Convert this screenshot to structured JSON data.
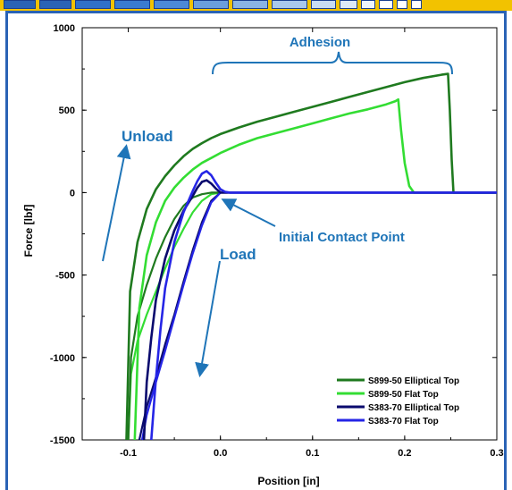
{
  "colors": {
    "frame": "#2a63b5",
    "topstrip": "#f2c200",
    "annotation": "#1f75b8",
    "series": [
      "#1f7a1f",
      "#33dd33",
      "#0a0a6e",
      "#2525e6"
    ]
  },
  "chart_data": {
    "type": "line",
    "title": "",
    "xlabel": "Position [in]",
    "ylabel": "Force [lbf]",
    "xlim": [
      -0.15,
      0.3
    ],
    "ylim": [
      -1500,
      1000
    ],
    "xticks": [
      -0.1,
      0.0,
      0.1,
      0.2,
      0.3
    ],
    "xtick_labels": [
      "-0.1",
      "0.0",
      "0.1",
      "0.2",
      "0.3"
    ],
    "yticks": [
      -1500,
      -1000,
      -500,
      0,
      500,
      1000
    ],
    "ytick_labels": [
      "-1500",
      "-1000",
      "-500",
      "0",
      "500",
      "1000"
    ],
    "grid": false,
    "legend_position": "bottom-right",
    "annotations": {
      "adhesion": "Adhesion",
      "unload": "Unload",
      "load": "Load",
      "contact": "Initial Contact Point"
    },
    "series": [
      {
        "name": "S899-50 Elliptical Top",
        "x": [
          -0.102,
          -0.098,
          -0.09,
          -0.08,
          -0.07,
          -0.06,
          -0.05,
          -0.04,
          -0.03,
          -0.02,
          -0.01,
          0.0,
          0.02,
          0.04,
          0.06,
          0.08,
          0.1,
          0.12,
          0.14,
          0.16,
          0.18,
          0.2,
          0.22,
          0.24,
          0.247,
          0.249,
          0.251,
          0.253,
          0.26,
          0.27,
          0.28,
          0.29,
          0.3
        ],
        "y": [
          -1500,
          -600,
          -300,
          -100,
          20,
          100,
          165,
          220,
          265,
          300,
          330,
          355,
          395,
          430,
          460,
          490,
          520,
          550,
          580,
          610,
          640,
          670,
          695,
          715,
          720,
          500,
          200,
          0,
          0,
          0,
          0,
          0,
          0
        ]
      },
      {
        "name": "S899-50 Flat Top",
        "x": [
          -0.093,
          -0.088,
          -0.08,
          -0.07,
          -0.06,
          -0.05,
          -0.04,
          -0.03,
          -0.02,
          -0.01,
          0.0,
          0.02,
          0.04,
          0.06,
          0.08,
          0.1,
          0.12,
          0.14,
          0.16,
          0.18,
          0.19,
          0.193,
          0.196,
          0.2,
          0.205,
          0.21,
          0.22,
          0.24,
          0.26,
          0.28,
          0.3
        ],
        "y": [
          -1500,
          -700,
          -380,
          -180,
          -50,
          30,
          90,
          140,
          180,
          210,
          240,
          290,
          330,
          360,
          390,
          420,
          450,
          480,
          505,
          535,
          555,
          565,
          380,
          180,
          40,
          0,
          0,
          0,
          0,
          0,
          0
        ]
      },
      {
        "name": "S383-70 Elliptical Top",
        "x": [
          -0.083,
          -0.08,
          -0.075,
          -0.07,
          -0.06,
          -0.05,
          -0.04,
          -0.03,
          -0.025,
          -0.02,
          -0.015,
          -0.01,
          -0.005,
          0.0,
          0.005,
          0.01,
          0.03,
          0.06,
          0.1,
          0.15,
          0.2,
          0.25,
          0.3
        ],
        "y": [
          -1500,
          -1150,
          -880,
          -650,
          -400,
          -230,
          -110,
          -20,
          30,
          65,
          75,
          55,
          25,
          0,
          0,
          0,
          0,
          0,
          0,
          0,
          0,
          0,
          0
        ]
      },
      {
        "name": "S383-70 Flat Top",
        "x": [
          -0.075,
          -0.07,
          -0.065,
          -0.06,
          -0.05,
          -0.04,
          -0.03,
          -0.025,
          -0.02,
          -0.015,
          -0.01,
          -0.005,
          0.0,
          0.005,
          0.01,
          0.03,
          0.06,
          0.1,
          0.15,
          0.2,
          0.25,
          0.3
        ],
        "y": [
          -1500,
          -1130,
          -830,
          -580,
          -300,
          -120,
          10,
          70,
          115,
          130,
          105,
          60,
          20,
          5,
          0,
          0,
          0,
          0,
          0,
          0,
          0,
          0
        ]
      }
    ],
    "load_series": [
      {
        "x": [
          -0.1,
          -0.097,
          -0.09,
          -0.08,
          -0.07,
          -0.06,
          -0.05,
          -0.04,
          -0.03,
          -0.02,
          -0.01,
          0.0
        ],
        "y": [
          -1500,
          -1100,
          -900,
          -740,
          -600,
          -460,
          -330,
          -220,
          -120,
          -50,
          -10,
          0
        ],
        "series_index": 1
      },
      {
        "x": [
          -0.1,
          -0.097,
          -0.09,
          -0.08,
          -0.07,
          -0.06,
          -0.05,
          -0.04,
          -0.03,
          -0.02,
          -0.01,
          0.0
        ],
        "y": [
          -1500,
          -1000,
          -750,
          -560,
          -400,
          -270,
          -160,
          -80,
          -30,
          -10,
          0,
          0
        ],
        "series_index": 0
      },
      {
        "x": [
          -0.088,
          -0.08,
          -0.07,
          -0.06,
          -0.05,
          -0.04,
          -0.03,
          -0.02,
          -0.01,
          0.0
        ],
        "y": [
          -1500,
          -1300,
          -1120,
          -920,
          -740,
          -540,
          -350,
          -180,
          -50,
          0
        ],
        "series_index": 2
      },
      {
        "x": [
          -0.085,
          -0.08,
          -0.07,
          -0.06,
          -0.05,
          -0.04,
          -0.03,
          -0.02,
          -0.01,
          0.0
        ],
        "y": [
          -1500,
          -1350,
          -1150,
          -960,
          -760,
          -560,
          -370,
          -200,
          -60,
          0
        ],
        "series_index": 3
      }
    ]
  }
}
